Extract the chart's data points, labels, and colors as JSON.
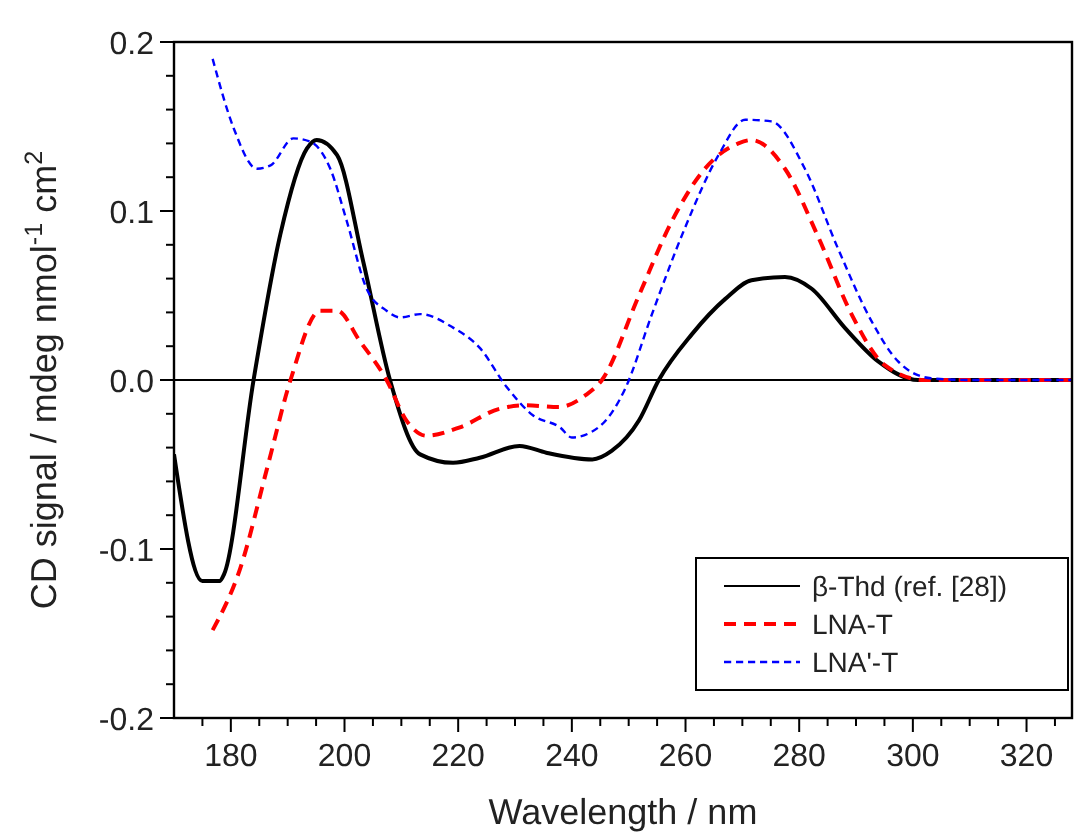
{
  "chart_data": {
    "type": "line",
    "xlabel": "Wavelength / nm",
    "ylabel": "CD signal / mdeg nmol$^{-1}$ cm$^{2}$",
    "xlim": [
      170,
      328
    ],
    "ylim": [
      -0.2,
      0.2
    ],
    "xticks": [
      {
        "value": 175,
        "label": null
      },
      180,
      {
        "value": 185,
        "label": null
      },
      200,
      {
        "value": 190,
        "label": null
      },
      {
        "value": 195,
        "label": null
      },
      {
        "value": 205,
        "label": null
      },
      {
        "value": 210,
        "label": null
      },
      {
        "value": 215,
        "label": null
      },
      220,
      {
        "value": 225,
        "label": null
      },
      {
        "value": 230,
        "label": null
      },
      {
        "value": 235,
        "label": null
      },
      240,
      {
        "value": 245,
        "label": null
      },
      {
        "value": 250,
        "label": null
      },
      {
        "value": 255,
        "label": null
      },
      260,
      {
        "value": 265,
        "label": null
      },
      {
        "value": 270,
        "label": null
      },
      {
        "value": 275,
        "label": null
      },
      280,
      {
        "value": 285,
        "label": null
      },
      {
        "value": 290,
        "label": null
      },
      {
        "value": 295,
        "label": null
      },
      300,
      {
        "value": 305,
        "label": null
      },
      {
        "value": 310,
        "label": null
      },
      {
        "value": 315,
        "label": null
      },
      320,
      {
        "value": 325,
        "label": null
      }
    ],
    "yticks": [
      -0.2,
      {
        "value": -0.18,
        "label": null
      },
      {
        "value": -0.16,
        "label": null
      },
      {
        "value": -0.14,
        "label": null
      },
      {
        "value": -0.12,
        "label": null
      },
      -0.1,
      {
        "value": -0.08,
        "label": null
      },
      {
        "value": -0.06,
        "label": null
      },
      {
        "value": -0.04,
        "label": null
      },
      {
        "value": -0.02,
        "label": null
      },
      {
        "value": 0,
        "label": "0.0"
      },
      {
        "value": 0.02,
        "label": null
      },
      {
        "value": 0.04,
        "label": null
      },
      {
        "value": 0.06,
        "label": null
      },
      {
        "value": 0.08,
        "label": null
      },
      0.1,
      {
        "value": 0.12,
        "label": null
      },
      {
        "value": 0.14,
        "label": null
      },
      {
        "value": 0.16,
        "label": null
      },
      {
        "value": 0.18,
        "label": null
      },
      0.2
    ],
    "grid": false,
    "legend": "bottom right",
    "ref_lines": [
      {
        "axis": "y",
        "value": 0,
        "color": "#000000"
      }
    ],
    "series": [
      {
        "name": "β-Thd (ref. [28])",
        "color": "#000000",
        "line_style": "solid",
        "x": [
          170,
          175,
          178,
          178.8,
          184,
          188.7,
          193.4,
          195.1,
          198.7,
          203.3,
          208,
          213.3,
          219.1,
          223.8,
          230.8,
          235.5,
          243.6,
          247,
          251.8,
          255.3,
          261.1,
          267,
          271.6,
          277.5,
          282.2,
          288,
          293.9,
          300.9,
          310,
          320,
          328
        ],
        "values": [
          -0.044,
          -0.119,
          -0.119,
          -0.115,
          0,
          0.086,
          0.137,
          0.142,
          0.133,
          0.07,
          0,
          -0.044,
          -0.049,
          -0.046,
          -0.039,
          -0.043,
          -0.047,
          -0.042,
          -0.024,
          0,
          0.027,
          0.048,
          0.059,
          0.061,
          0.054,
          0.031,
          0.011,
          0,
          0,
          0,
          0
        ]
      },
      {
        "name": "LNA-T",
        "color": "#ff0000",
        "line_style": "dashed",
        "x": [
          176.8,
          181.7,
          186.4,
          190.5,
          195.7,
          198.7,
          202.7,
          207.4,
          210.9,
          214.4,
          220.3,
          227.3,
          232,
          237.7,
          242.4,
          245.3,
          251.8,
          257.6,
          263.4,
          269.3,
          271.6,
          277.5,
          283.3,
          289.2,
          295,
          302,
          310,
          320,
          328
        ],
        "values": [
          -0.148,
          -0.111,
          -0.052,
          0,
          0.041,
          0.041,
          0.023,
          0,
          -0.024,
          -0.033,
          -0.028,
          -0.017,
          -0.015,
          -0.016,
          -0.009,
          0,
          0.05,
          0.094,
          0.125,
          0.14,
          0.142,
          0.125,
          0.085,
          0.039,
          0.009,
          0,
          0,
          0,
          0
        ]
      },
      {
        "name": "LNA'-T",
        "color": "#0000ff",
        "line_style": "dashed",
        "x": [
          176.8,
          180.5,
          184.6,
          187,
          191,
          194,
          197.5,
          200.4,
          203.9,
          207.4,
          209.8,
          213.3,
          219.1,
          223.8,
          228.5,
          233.2,
          237.9,
          240,
          244.7,
          249.4,
          254.1,
          259.9,
          265.8,
          270.5,
          275.1,
          281,
          286.8,
          292.7,
          297.4,
          303.2,
          310,
          320,
          328
        ],
        "values": [
          0.19,
          0.149,
          0.125,
          0.127,
          0.143,
          0.141,
          0.125,
          0.094,
          0.054,
          0.041,
          0.037,
          0.039,
          0.031,
          0.019,
          -0.004,
          -0.021,
          -0.028,
          -0.034,
          -0.028,
          -0.005,
          0.039,
          0.09,
          0.133,
          0.154,
          0.153,
          0.125,
          0.078,
          0.035,
          0.011,
          0.001,
          0,
          0,
          0
        ]
      }
    ]
  }
}
